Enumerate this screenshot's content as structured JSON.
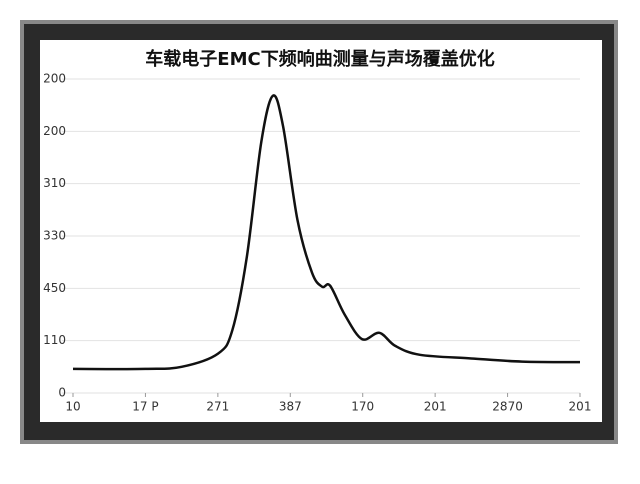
{
  "chart_data": {
    "type": "line",
    "title": "车载电子EMC下频响曲测量与声场覆盖优化",
    "x": [
      0,
      1,
      1.5,
      2,
      2.2,
      2.4,
      2.6,
      2.76,
      2.9,
      3.1,
      3.3,
      3.44,
      3.55,
      3.75,
      3.99,
      4.23,
      4.45,
      4.79,
      5.5,
      6.2,
      7
    ],
    "values": [
      0.46,
      0.46,
      0.5,
      0.75,
      1.2,
      2.6,
      4.8,
      5.68,
      5.1,
      3.3,
      2.3,
      2.03,
      2.05,
      1.5,
      1.03,
      1.15,
      0.9,
      0.73,
      0.66,
      0.6,
      0.59
    ],
    "color": "#111111",
    "xlim": [
      0,
      7
    ],
    "xticks": [
      {
        "value": 0,
        "label": "10"
      },
      {
        "value": 1,
        "label": "17 P"
      },
      {
        "value": 2,
        "label": "271"
      },
      {
        "value": 3,
        "label": "387"
      },
      {
        "value": 4,
        "label": "170"
      },
      {
        "value": 5,
        "label": "201"
      },
      {
        "value": 6,
        "label": "2870"
      },
      {
        "value": 7,
        "label": "201"
      }
    ],
    "ylim": [
      0,
      6
    ],
    "yticks": [
      {
        "value": 0,
        "label": "0"
      },
      {
        "value": 1,
        "label": "110"
      },
      {
        "value": 2,
        "label": "450"
      },
      {
        "value": 3,
        "label": "330"
      },
      {
        "value": 4,
        "label": "310"
      },
      {
        "value": 5,
        "label": "200"
      },
      {
        "value": 6,
        "label": "200"
      }
    ],
    "grid": true
  }
}
